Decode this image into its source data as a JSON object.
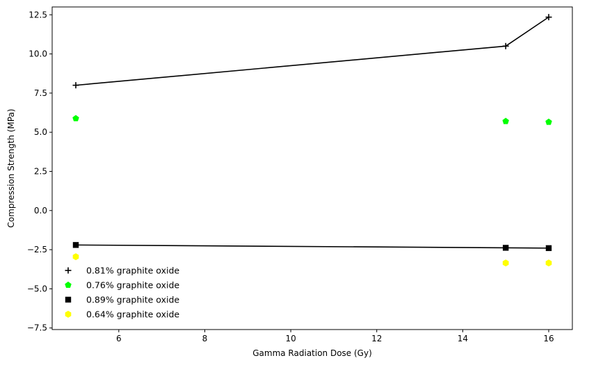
{
  "chart_data": {
    "type": "scatter",
    "title": "",
    "xlabel": "Gamma Radiation Dose (Gy)",
    "ylabel": "Compression Strength (MPa)",
    "xlim": [
      4.45,
      16.55
    ],
    "ylim": [
      -7.6,
      13.0
    ],
    "xticks": [
      6,
      8,
      10,
      12,
      14,
      16
    ],
    "yticks": [
      -7.5,
      -5.0,
      -2.5,
      0.0,
      2.5,
      5.0,
      7.5,
      10.0,
      12.5
    ],
    "xtick_labels": [
      "6",
      "8",
      "10",
      "12",
      "14",
      "16"
    ],
    "ytick_labels": [
      "−7.5",
      "−5.0",
      "−2.5",
      "0.0",
      "2.5",
      "5.0",
      "7.5",
      "10.0",
      "12.5"
    ],
    "grid": false,
    "legend_position": "lower-left",
    "series": [
      {
        "name": "0.81% graphite oxide",
        "marker": "plus",
        "color": "#000000",
        "line": true,
        "x": [
          5,
          15,
          16
        ],
        "y": [
          8.0,
          10.5,
          12.35
        ]
      },
      {
        "name": "0.76% graphite oxide",
        "marker": "pentagon",
        "color": "#00ff00",
        "line": false,
        "x": [
          5,
          15,
          16
        ],
        "y": [
          5.88,
          5.7,
          5.65
        ]
      },
      {
        "name": "0.89% graphite oxide",
        "marker": "square",
        "color": "#000000",
        "line": true,
        "x": [
          5,
          15,
          16
        ],
        "y": [
          -2.2,
          -2.38,
          -2.4
        ]
      },
      {
        "name": "0.64% graphite oxide",
        "marker": "hexagon",
        "color": "#ffff00",
        "line": false,
        "x": [
          5,
          15,
          16
        ],
        "y": [
          -2.95,
          -3.35,
          -3.35
        ]
      }
    ]
  }
}
